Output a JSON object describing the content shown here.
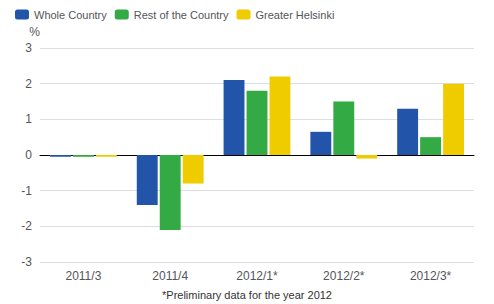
{
  "chart_data": {
    "type": "bar",
    "categories": [
      "2011/3",
      "2011/4",
      "2012/1*",
      "2012/2*",
      "2012/3*"
    ],
    "series": [
      {
        "name": "Whole Country",
        "color": "#2255aa",
        "values": [
          -0.05,
          -1.4,
          2.1,
          0.65,
          1.3
        ]
      },
      {
        "name": "Rest of the Country",
        "color": "#33aa44",
        "values": [
          -0.05,
          -2.1,
          1.8,
          1.5,
          0.5
        ]
      },
      {
        "name": "Greater Helsinki",
        "color": "#eecc00",
        "values": [
          -0.05,
          -0.8,
          2.2,
          -0.1,
          2.0
        ]
      }
    ],
    "ylim": [
      -3,
      3
    ],
    "yticks": [
      -3,
      -2,
      -1,
      0,
      1,
      2,
      3
    ],
    "ylabel": "%",
    "footnote": "*Preliminary data for the year 2012",
    "grid": true,
    "legend": "upper left"
  }
}
